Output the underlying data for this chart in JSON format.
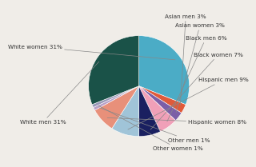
{
  "slices": [
    {
      "label": "White women 31%",
      "value": 31,
      "color": "#4bacc6"
    },
    {
      "label": "Asian men 3%",
      "value": 3,
      "color": "#e05a3a"
    },
    {
      "label": "Asian women 3%",
      "value": 3,
      "color": "#7b5ea7"
    },
    {
      "label": "Black men 6%",
      "value": 6,
      "color": "#f0a0b8"
    },
    {
      "label": "Black women 7%",
      "value": 7,
      "color": "#1a2060"
    },
    {
      "label": "Hispanic men 9%",
      "value": 9,
      "color": "#a0c4d8"
    },
    {
      "label": "Hispanic women 8%",
      "value": 8,
      "color": "#e8907a"
    },
    {
      "label": "Other men 1%",
      "value": 1,
      "color": "#b8a0c8"
    },
    {
      "label": "Other women 1%",
      "value": 1,
      "color": "#9898b8"
    },
    {
      "label": "White men 31%",
      "value": 31,
      "color": "#1a5248"
    }
  ],
  "background_color": "#f0ede8",
  "fontsize": 5.2,
  "startangle": 90
}
